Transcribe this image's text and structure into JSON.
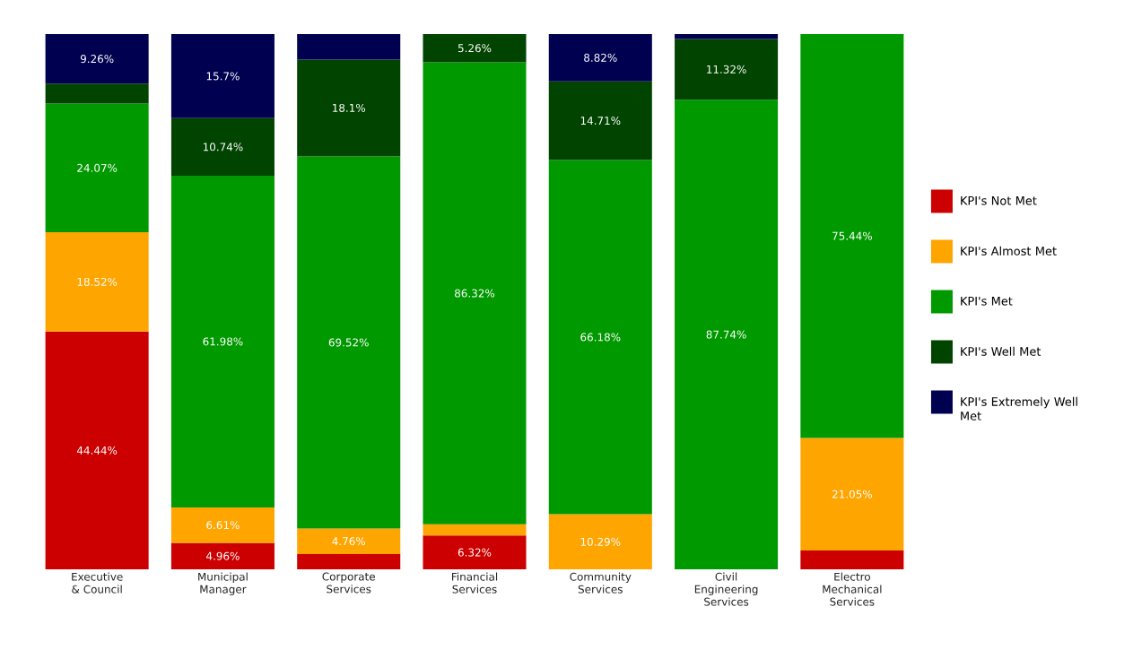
{
  "chart_data": {
    "type": "bar",
    "stacked": true,
    "categories": [
      "Executive & Council",
      "Municipal Manager",
      "Corporate Services",
      "Financial Services",
      "Community Services",
      "Civil Engineering Services",
      "Electro Mechanical Services"
    ],
    "ylim": [
      0,
      100
    ],
    "tick_labels": "x",
    "legend": "right",
    "series": [
      {
        "name": "KPI's Not Met",
        "color": "#cc0000",
        "values": [
          44.44,
          4.96,
          2.86,
          6.32,
          null,
          null,
          3.51
        ],
        "value_labels": [
          "44.44%",
          "4.96%",
          null,
          "6.32%",
          null,
          null,
          null
        ]
      },
      {
        "name": "KPI's Almost Met",
        "color": "#ffa500",
        "values": [
          18.52,
          6.61,
          4.76,
          2.1,
          10.29,
          null,
          21.05
        ],
        "value_labels": [
          "18.52%",
          "6.61%",
          "4.76%",
          null,
          "10.29%",
          null,
          "21.05%"
        ]
      },
      {
        "name": "KPI's Met",
        "color": "#009900",
        "values": [
          24.07,
          61.98,
          69.52,
          86.32,
          66.18,
          87.74,
          75.44
        ],
        "value_labels": [
          "24.07%",
          "61.98%",
          "69.52%",
          "86.32%",
          "66.18%",
          "87.74%",
          "75.44%"
        ]
      },
      {
        "name": "KPI's Well Met",
        "color": "#004400",
        "values": [
          3.71,
          10.74,
          18.1,
          5.26,
          14.71,
          11.32,
          null
        ],
        "value_labels": [
          null,
          "10.74%",
          "18.1%",
          "5.26%",
          "14.71%",
          "11.32%",
          null
        ]
      },
      {
        "name": "KPI's Extremely Well Met",
        "color": "#000050",
        "values": [
          9.26,
          15.7,
          4.76,
          null,
          8.82,
          0.94,
          null
        ],
        "value_labels": [
          "9.26%",
          "15.7%",
          null,
          null,
          "8.82%",
          null,
          null
        ]
      }
    ]
  }
}
